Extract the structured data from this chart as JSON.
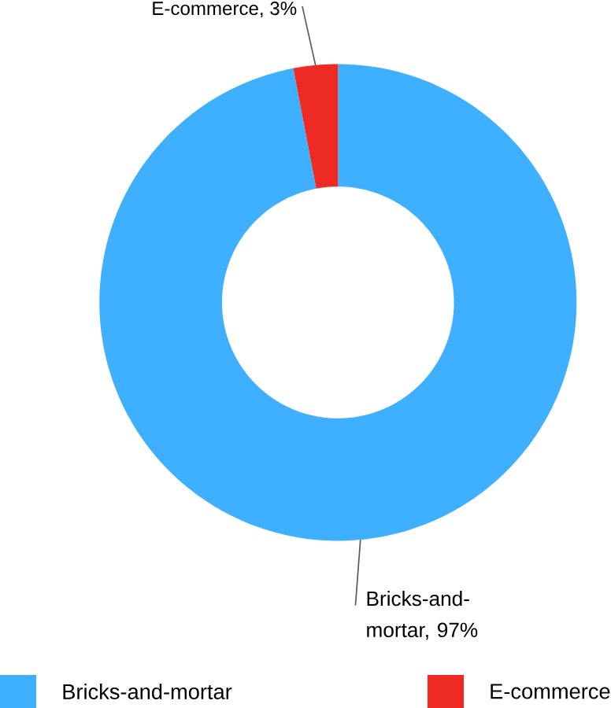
{
  "chart_data": {
    "type": "donut",
    "categories": [
      "Bricks-and-mortar",
      "E-commerce"
    ],
    "values": [
      97,
      3
    ],
    "colors": [
      "#3fb0ff",
      "#ee2a24"
    ],
    "value_labels": [
      "Bricks-and-mortar, 97%",
      "E-commerce, 3%"
    ],
    "legend": "bottom"
  }
}
